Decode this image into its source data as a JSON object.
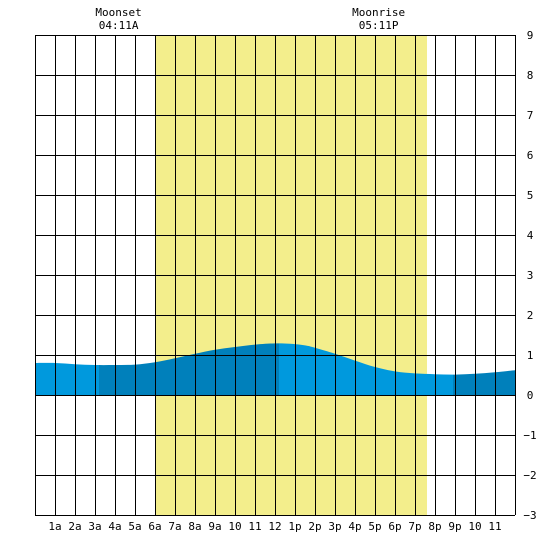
{
  "chart_data": {
    "type": "area",
    "x_unit": "hour of day",
    "xlim": [
      0,
      24
    ],
    "ylim": [
      -3,
      9
    ],
    "y_ticks": [
      9,
      8,
      7,
      6,
      5,
      4,
      3,
      2,
      1,
      0,
      -1,
      -2,
      -3
    ],
    "x_ticks": [
      {
        "x": 1,
        "label": "1a"
      },
      {
        "x": 2,
        "label": "2a"
      },
      {
        "x": 3,
        "label": "3a"
      },
      {
        "x": 4,
        "label": "4a"
      },
      {
        "x": 5,
        "label": "5a"
      },
      {
        "x": 6,
        "label": "6a"
      },
      {
        "x": 7,
        "label": "7a"
      },
      {
        "x": 8,
        "label": "8a"
      },
      {
        "x": 9,
        "label": "9a"
      },
      {
        "x": 10,
        "label": "10"
      },
      {
        "x": 11,
        "label": "11"
      },
      {
        "x": 12,
        "label": "12"
      },
      {
        "x": 13,
        "label": "1p"
      },
      {
        "x": 14,
        "label": "2p"
      },
      {
        "x": 15,
        "label": "3p"
      },
      {
        "x": 16,
        "label": "4p"
      },
      {
        "x": 17,
        "label": "5p"
      },
      {
        "x": 18,
        "label": "6p"
      },
      {
        "x": 19,
        "label": "7p"
      },
      {
        "x": 20,
        "label": "8p"
      },
      {
        "x": 21,
        "label": "9p"
      },
      {
        "x": 22,
        "label": "10"
      },
      {
        "x": 23,
        "label": "11"
      }
    ],
    "grid": true,
    "daylight": {
      "start": 6.0,
      "end": 19.6
    },
    "moon_events": [
      {
        "label": "Moonset",
        "time": "04:11A",
        "x": 4.18
      },
      {
        "label": "Moonrise",
        "time": "05:11P",
        "x": 17.18
      }
    ],
    "tide": {
      "x": [
        0,
        1,
        2,
        3,
        4,
        5,
        6,
        7,
        8,
        9,
        10,
        11,
        12,
        12.75,
        13.5,
        14,
        15,
        16,
        17,
        18,
        19,
        20,
        21,
        22,
        23,
        24
      ],
      "y": [
        0.8,
        0.8,
        0.77,
        0.75,
        0.75,
        0.76,
        0.82,
        0.92,
        1.03,
        1.13,
        1.2,
        1.26,
        1.29,
        1.28,
        1.24,
        1.18,
        1.03,
        0.86,
        0.7,
        0.59,
        0.54,
        0.52,
        0.51,
        0.53,
        0.57,
        0.62
      ]
    },
    "shade_bands": [
      {
        "start": 0,
        "end": 3.2,
        "color": "#0099dd"
      },
      {
        "start": 3.2,
        "end": 12.2,
        "color": "#0080bb"
      },
      {
        "start": 12.2,
        "end": 20.9,
        "color": "#0099dd"
      },
      {
        "start": 20.9,
        "end": 24,
        "color": "#0080bb"
      }
    ],
    "colors": {
      "daylight": "#f3ee8c",
      "background": "#ffffff",
      "grid": "#000000"
    }
  }
}
